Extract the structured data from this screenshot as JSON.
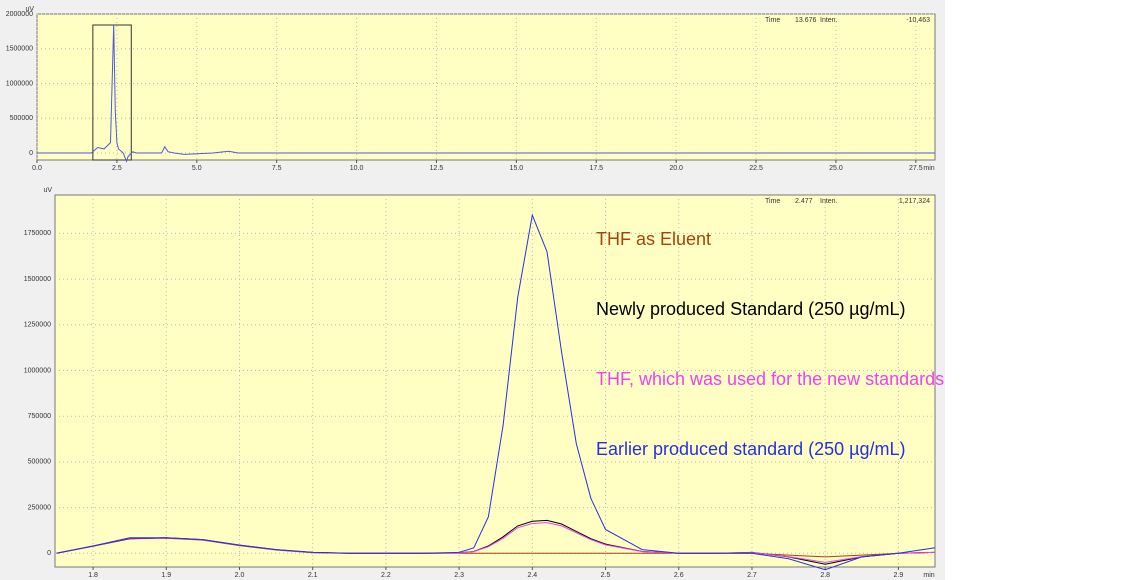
{
  "chart_data": [
    {
      "type": "line",
      "y_unit": "uV",
      "x_unit": "min",
      "readout": [
        "Time",
        "13.676",
        "Inten.",
        "-10,463"
      ],
      "xlim": [
        0,
        28.1
      ],
      "ylim": [
        -100000,
        2000000
      ],
      "grid": true,
      "xticks": [
        {
          "value": 0,
          "label": "0.0"
        },
        2.5,
        {
          "value": 5,
          "label": "5.0"
        },
        7.5,
        {
          "value": 10,
          "label": "10.0"
        },
        12.5,
        {
          "value": 15,
          "label": "15.0"
        },
        17.5,
        {
          "value": 20,
          "label": "20.0"
        },
        22.5,
        {
          "value": 25,
          "label": "25.0"
        },
        27.5
      ],
      "yticks": [
        0,
        500000,
        1000000,
        1500000,
        2000000
      ],
      "x": [
        0,
        1.7,
        1.9,
        2.1,
        2.3,
        2.4,
        2.45,
        2.5,
        2.55,
        2.7,
        2.8,
        2.85,
        3.0,
        3.1,
        3.9,
        4.0,
        4.1,
        4.3,
        4.6,
        5.5,
        6.0,
        6.3,
        28.1
      ],
      "series": [
        {
          "color": "#4a5ae0",
          "values": [
            0,
            0,
            80000,
            60000,
            150000,
            1850000,
            600000,
            150000,
            60000,
            0,
            -120000,
            -50000,
            20000,
            0,
            0,
            90000,
            20000,
            0,
            -20000,
            0,
            25000,
            0,
            0
          ]
        }
      ]
    },
    {
      "type": "line",
      "y_unit": "uV",
      "x_unit": "min",
      "readout": [
        "Time",
        "2.477",
        "Inten.",
        "1,217,324"
      ],
      "xlim": [
        1.748,
        2.95
      ],
      "ylim": [
        -75000,
        1960000
      ],
      "grid": true,
      "xticks": [
        1.8,
        1.9,
        {
          "value": 2,
          "label": "2.0"
        },
        2.1,
        2.2,
        2.3,
        2.4,
        2.5,
        2.6,
        2.7,
        2.8,
        2.9
      ],
      "yticks": [
        0,
        250000,
        500000,
        750000,
        1000000,
        1250000,
        1500000,
        1750000
      ],
      "x": [
        1.75,
        1.8,
        1.85,
        1.9,
        1.95,
        2.0,
        2.05,
        2.1,
        2.15,
        2.2,
        2.25,
        2.3,
        2.32,
        2.34,
        2.36,
        2.38,
        2.4,
        2.42,
        2.44,
        2.46,
        2.48,
        2.5,
        2.55,
        2.6,
        2.65,
        2.7,
        2.75,
        2.8,
        2.85,
        2.9,
        2.95
      ],
      "series": [
        {
          "name": "THF as Eluent",
          "color": "#a8420c",
          "values": [
            0,
            38000,
            80000,
            82000,
            72000,
            42000,
            18000,
            3000,
            0,
            0,
            0,
            0,
            0,
            0,
            0,
            0,
            0,
            0,
            0,
            0,
            0,
            0,
            0,
            0,
            0,
            0,
            -10000,
            -20000,
            -10000,
            0,
            5000
          ]
        },
        {
          "name": "Newly produced Standard (250 µg/mL)",
          "color": "#000000",
          "values": [
            0,
            40000,
            80000,
            85000,
            75000,
            45000,
            20000,
            5000,
            0,
            0,
            0,
            2000,
            10000,
            40000,
            90000,
            150000,
            175000,
            180000,
            160000,
            120000,
            80000,
            50000,
            10000,
            0,
            0,
            5000,
            -20000,
            -60000,
            -20000,
            0,
            5000
          ]
        },
        {
          "name": "THF, which was used for the new standards",
          "color": "#f040f0",
          "values": [
            0,
            40000,
            82000,
            84000,
            74000,
            44000,
            19000,
            4000,
            0,
            0,
            0,
            1500,
            9000,
            36000,
            82000,
            140000,
            163000,
            168000,
            150000,
            112000,
            75000,
            46000,
            9000,
            0,
            0,
            4000,
            -18000,
            -50000,
            -18000,
            0,
            5000
          ]
        },
        {
          "name": "Earlier produced standard (250 µg/mL)",
          "color": "#2630e0",
          "values": [
            0,
            40000,
            85000,
            85000,
            75000,
            45000,
            20000,
            5000,
            0,
            0,
            0,
            5000,
            30000,
            200000,
            700000,
            1400000,
            1850000,
            1650000,
            1100000,
            600000,
            300000,
            130000,
            20000,
            0,
            0,
            0,
            -30000,
            -90000,
            -20000,
            0,
            30000
          ]
        }
      ]
    }
  ]
}
